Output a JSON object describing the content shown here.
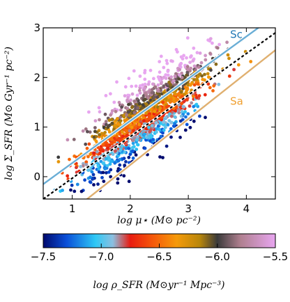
{
  "chart_data": {
    "type": "scatter",
    "xlabel": "log μ⋆ (M⊙ pc⁻²)",
    "ylabel": "log Σ_SFR (M⊙ Gyr⁻¹ pc⁻²)",
    "xlim": [
      0.5,
      4.5
    ],
    "ylim": [
      -0.45,
      3.0
    ],
    "xticks": [
      1,
      2,
      3,
      4
    ],
    "yticks": [
      0,
      1,
      2,
      3
    ],
    "grid": false,
    "color_scale": {
      "label": "log ρ_SFR (M⊙yr⁻¹ Mpc⁻³)",
      "range": [
        -7.5,
        -5.5
      ],
      "ticks": [
        "−7.5",
        "−7.0",
        "−6.5",
        "−6.0",
        "−5.5"
      ],
      "stops": [
        {
          "v": -7.5,
          "c": "#000a6e"
        },
        {
          "v": -7.3,
          "c": "#0a4fd8"
        },
        {
          "v": -7.05,
          "c": "#2ec8f5"
        },
        {
          "v": -6.9,
          "c": "#8cbfe0"
        },
        {
          "v": -6.75,
          "c": "#e81c10"
        },
        {
          "v": -6.55,
          "c": "#f55a0a"
        },
        {
          "v": -6.35,
          "c": "#f59a0a"
        },
        {
          "v": -6.15,
          "c": "#b8860b"
        },
        {
          "v": -6.0,
          "c": "#3a3a3a"
        },
        {
          "v": -5.8,
          "c": "#b08090"
        },
        {
          "v": -5.5,
          "c": "#e8a6f0"
        }
      ]
    },
    "relations": [
      {
        "name": "Sc",
        "color": "#1f77b4",
        "line_color": "#6aaed6",
        "x": [
          0.5,
          4.5
        ],
        "y": [
          -0.15,
          3.25
        ],
        "label_x": 3.72,
        "label_y": 2.8
      },
      {
        "name": "",
        "color": "#000000",
        "line_color": "#000000",
        "dashed": true,
        "x": [
          0.5,
          4.5
        ],
        "y": [
          -0.45,
          2.9
        ]
      },
      {
        "name": "Sa",
        "color": "#f0a030",
        "line_color": "#e0b070",
        "x": [
          0.5,
          4.5
        ],
        "y": [
          -1.15,
          2.55
        ],
        "label_x": 3.72,
        "label_y": 1.45
      }
    ],
    "cloud": {
      "count": 1600,
      "x_center": 2.25,
      "x_spread": 0.55,
      "slope": 0.85,
      "intercept": -0.72,
      "scatter": 0.35,
      "color_base": -6.45,
      "color_slope": 0.9
    }
  }
}
